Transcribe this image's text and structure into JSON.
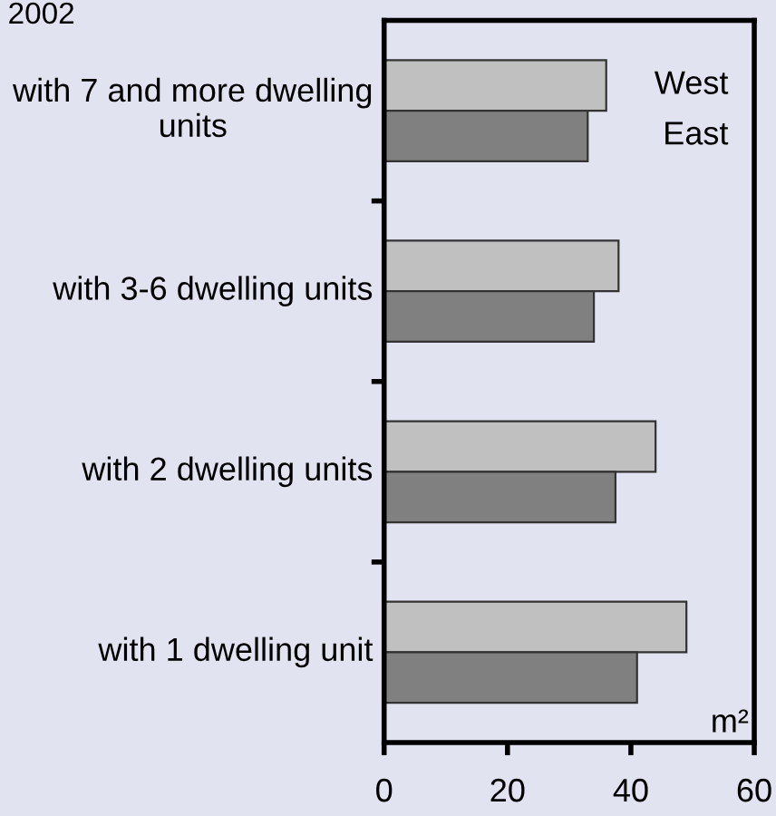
{
  "chart_data": {
    "type": "bar",
    "orientation": "horizontal",
    "title": "2002",
    "categories": [
      "with 7 and more dwelling units",
      "with 3-6 dwelling units",
      "with 2 dwelling units",
      "with 1 dwelling unit"
    ],
    "series": [
      {
        "name": "West",
        "color": "#c0c0c0",
        "values": [
          36,
          38,
          44,
          49
        ]
      },
      {
        "name": "East",
        "color": "#808080",
        "values": [
          33,
          34,
          37.5,
          41
        ]
      }
    ],
    "xlim": [
      0,
      60
    ],
    "xticks": [
      0,
      20,
      40,
      60
    ],
    "grid": false,
    "legend": "top right",
    "annotations": [
      "m²"
    ]
  }
}
